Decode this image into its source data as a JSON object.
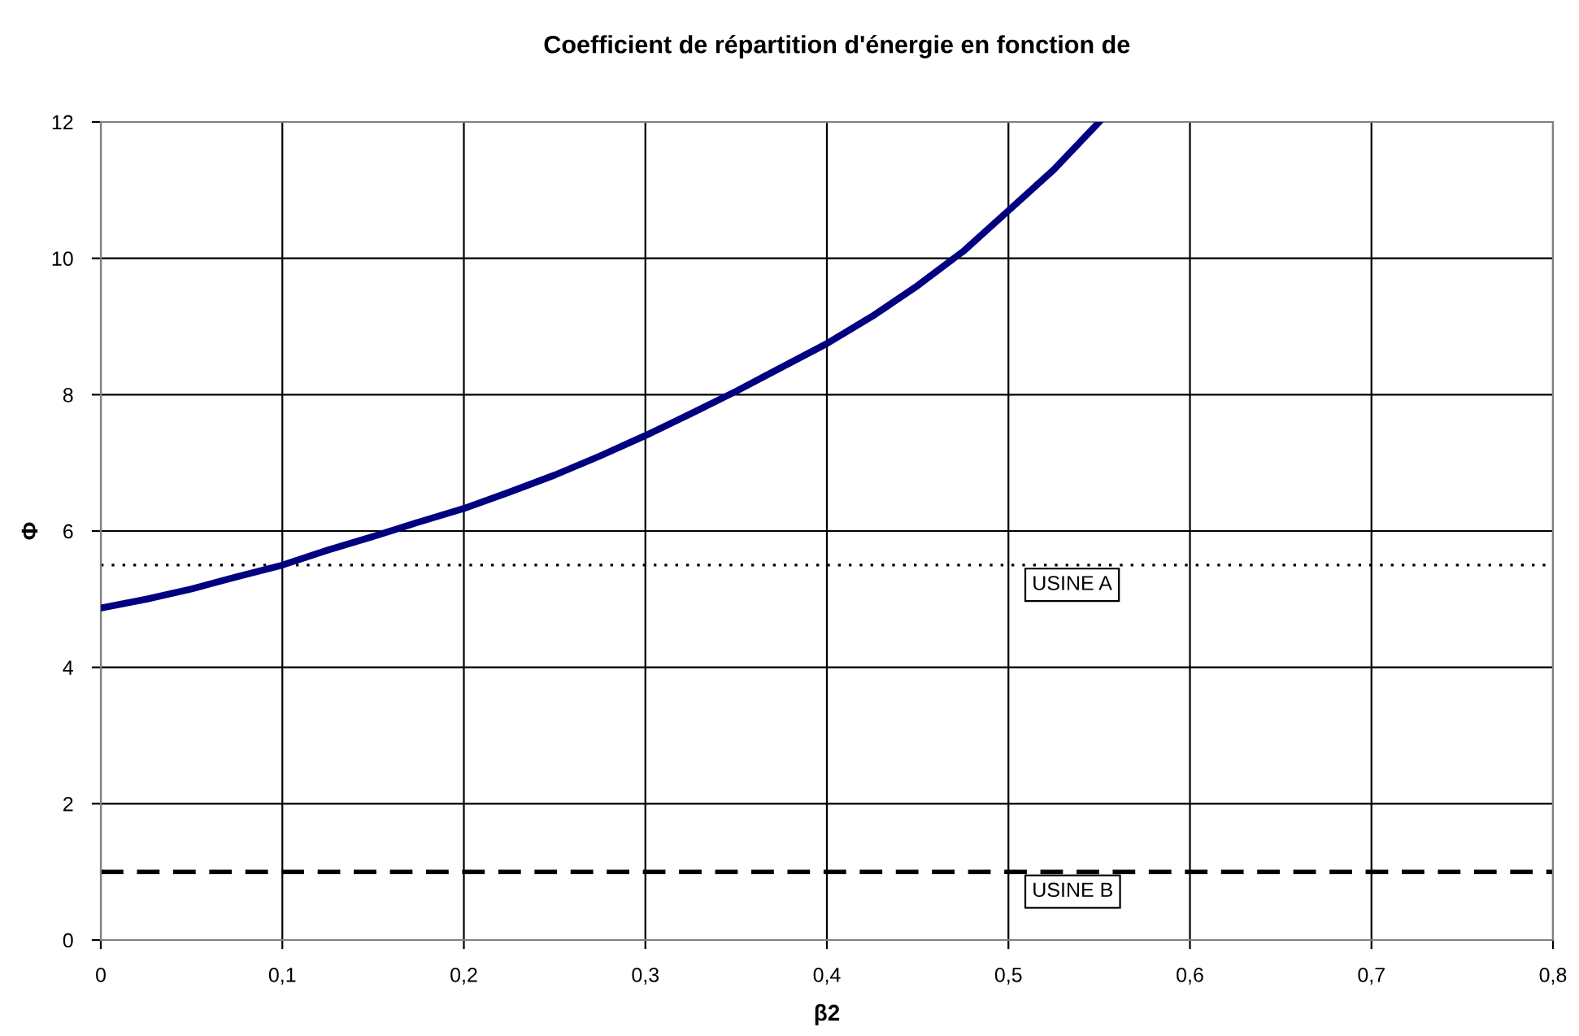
{
  "chart_data": {
    "type": "line",
    "title": "Coefficient de répartition d'énergie en fonction de",
    "xlabel": "β2",
    "ylabel": "Φ",
    "xlim": [
      0,
      0.8
    ],
    "ylim": [
      0,
      12
    ],
    "xticks": [
      {
        "value": 0,
        "label": "0"
      },
      {
        "value": 0.1,
        "label": "0,1"
      },
      {
        "value": 0.2,
        "label": "0,2"
      },
      {
        "value": 0.3,
        "label": "0,3"
      },
      {
        "value": 0.4,
        "label": "0,4"
      },
      {
        "value": 0.5,
        "label": "0,5"
      },
      {
        "value": 0.6,
        "label": "0,6"
      },
      {
        "value": 0.7,
        "label": "0,7"
      },
      {
        "value": 0.8,
        "label": "0,8"
      }
    ],
    "yticks": [
      0,
      2,
      4,
      6,
      8,
      10,
      12
    ],
    "grid": true,
    "marker": "none",
    "line_style": "solid",
    "x": [
      0,
      0.025,
      0.05,
      0.075,
      0.1,
      0.125,
      0.15,
      0.175,
      0.2,
      0.225,
      0.25,
      0.275,
      0.3,
      0.325,
      0.35,
      0.375,
      0.4,
      0.425,
      0.45,
      0.475,
      0.5,
      0.525,
      0.55
    ],
    "series": [
      {
        "color": "#000080",
        "values": [
          4.87,
          5.0,
          5.15,
          5.33,
          5.5,
          5.72,
          5.92,
          6.13,
          6.33,
          6.57,
          6.82,
          7.1,
          7.4,
          7.72,
          8.05,
          8.4,
          8.75,
          9.15,
          9.6,
          10.1,
          10.7,
          11.3,
          12.0
        ]
      }
    ],
    "ref_lines": [
      {
        "axis": "y",
        "value": 5.5,
        "label": "USINE A",
        "color": "#000000",
        "line_style": "dotted"
      },
      {
        "axis": "y",
        "value": 1,
        "label": "USINE B",
        "color": "#000000",
        "line_style": "dashed"
      }
    ]
  }
}
